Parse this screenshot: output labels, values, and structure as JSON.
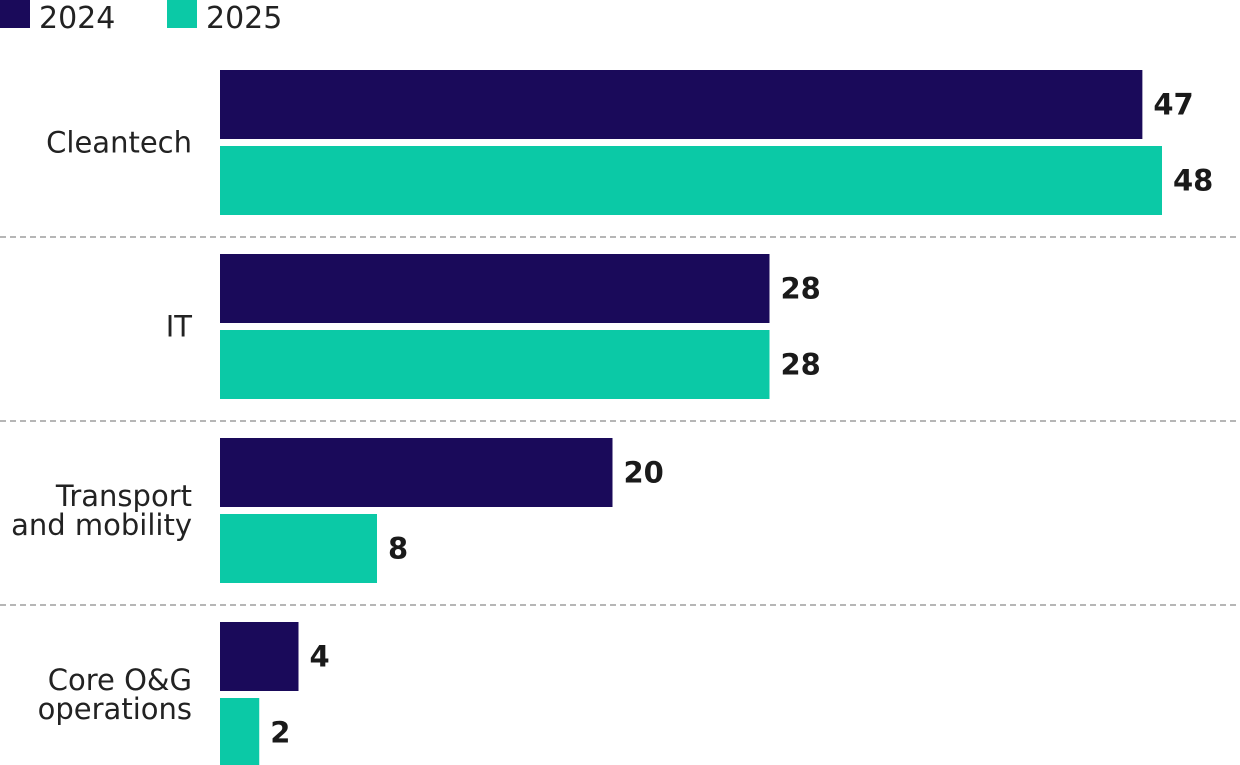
{
  "chart_data": {
    "type": "bar",
    "orientation": "horizontal",
    "categories": [
      [
        "Cleantech"
      ],
      [
        "IT"
      ],
      [
        "Transport",
        "and mobility"
      ],
      [
        "Core O&G",
        "operations"
      ]
    ],
    "series": [
      {
        "name": "2024",
        "color": "#1a0a5a",
        "values": [
          47,
          28,
          20,
          4
        ]
      },
      {
        "name": "2025",
        "color": "#0bc9a6",
        "values": [
          48,
          28,
          8,
          2
        ]
      }
    ],
    "legend_position": "top-left",
    "grid": false,
    "group_separators": "dashed"
  }
}
